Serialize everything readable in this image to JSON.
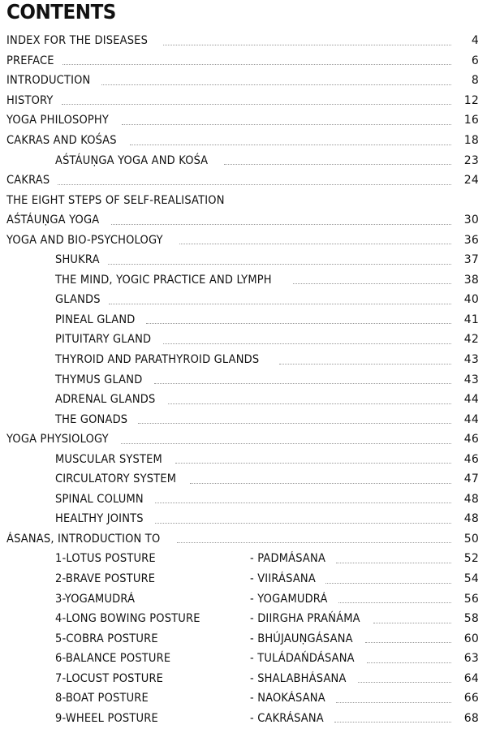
{
  "title": "CONTENTS",
  "entries": [
    {
      "text": "INDEX FOR THE DISEASES",
      "page": "4",
      "level": 0
    },
    {
      "text": "PREFACE",
      "page": "6",
      "level": 0
    },
    {
      "text": "INTRODUCTION",
      "page": "8",
      "level": 0
    },
    {
      "text": "HISTORY",
      "page": "12",
      "level": 0
    },
    {
      "text": "YOGA PHILOSOPHY",
      "page": "16",
      "level": 0
    },
    {
      "text": "CAKRAS AND KOŚAS",
      "page": "18",
      "level": 0
    },
    {
      "text": "AŚTÁUṆGA YOGA AND KOŚA",
      "page": "23",
      "level": 1
    },
    {
      "text": "CAKRAS",
      "page": "24",
      "level": 0
    },
    {
      "text": "THE EIGHT STEPS OF SELF-REALISATION",
      "page": "",
      "level": 0
    },
    {
      "text": "AŚTÁUṆGA YOGA",
      "page": "30",
      "level": 0
    },
    {
      "text": "YOGA AND BIO-PSYCHOLOGY",
      "page": "36",
      "level": 0
    },
    {
      "text": "SHUKRA",
      "page": "37",
      "level": 1
    },
    {
      "text": "THE MIND, YOGIC PRACTICE AND LYMPH",
      "page": "38",
      "level": 1
    },
    {
      "text": "GLANDS",
      "page": "40",
      "level": 1
    },
    {
      "text": "PINEAL GLAND",
      "page": "41",
      "level": 1
    },
    {
      "text": "PITUITARY GLAND",
      "page": "42",
      "level": 1
    },
    {
      "text": "THYROID AND PARATHYROID GLANDS",
      "page": "43",
      "level": 1
    },
    {
      "text": "THYMUS GLAND",
      "page": "43",
      "level": 1
    },
    {
      "text": "ADRENAL GLANDS",
      "page": "44",
      "level": 1
    },
    {
      "text": "THE GONADS",
      "page": "44",
      "level": 1
    },
    {
      "text": "YOGA PHYSIOLOGY",
      "page": "46",
      "level": 0
    },
    {
      "text": "MUSCULAR SYSTEM",
      "page": "46",
      "level": 1
    },
    {
      "text": "CIRCULATORY SYSTEM",
      "page": "47",
      "level": 1
    },
    {
      "text": "SPINAL COLUMN",
      "page": "48",
      "level": 1
    },
    {
      "text": "HEALTHY JOINTS",
      "page": "48",
      "level": 1
    },
    {
      "text": "ÁSANAS, INTRODUCTION TO",
      "page": "50",
      "level": 0
    }
  ],
  "postures": [
    {
      "english": "1-LOTUS POSTURE",
      "sanskrit": "- PADMÁSANA",
      "page": "52"
    },
    {
      "english": "2-BRAVE POSTURE",
      "sanskrit": "- VIIRÁSANA",
      "page": "54"
    },
    {
      "english": "3-YOGAMUDRÁ",
      "sanskrit": "- YOGAMUDRÁ",
      "page": "56"
    },
    {
      "english": "4-LONG BOWING POSTURE",
      "sanskrit": "- DIIRGHA PRAŃÁMA",
      "page": "58"
    },
    {
      "english": "5-COBRA POSTURE",
      "sanskrit": "- BHÚJAUṆGÁSANA",
      "page": "60"
    },
    {
      "english": "6-BALANCE POSTURE",
      "sanskrit": "- TULÁDAŃDÁSANA",
      "page": "63"
    },
    {
      "english": "7-LOCUST POSTURE",
      "sanskrit": "- SHALABHÁSANA",
      "page": "64"
    },
    {
      "english": "8-BOAT POSTURE",
      "sanskrit": "- NAOKÁSANA",
      "page": "66"
    },
    {
      "english": "9-WHEEL POSTURE",
      "sanskrit": "- CAKRÁSANA",
      "page": "68"
    }
  ]
}
